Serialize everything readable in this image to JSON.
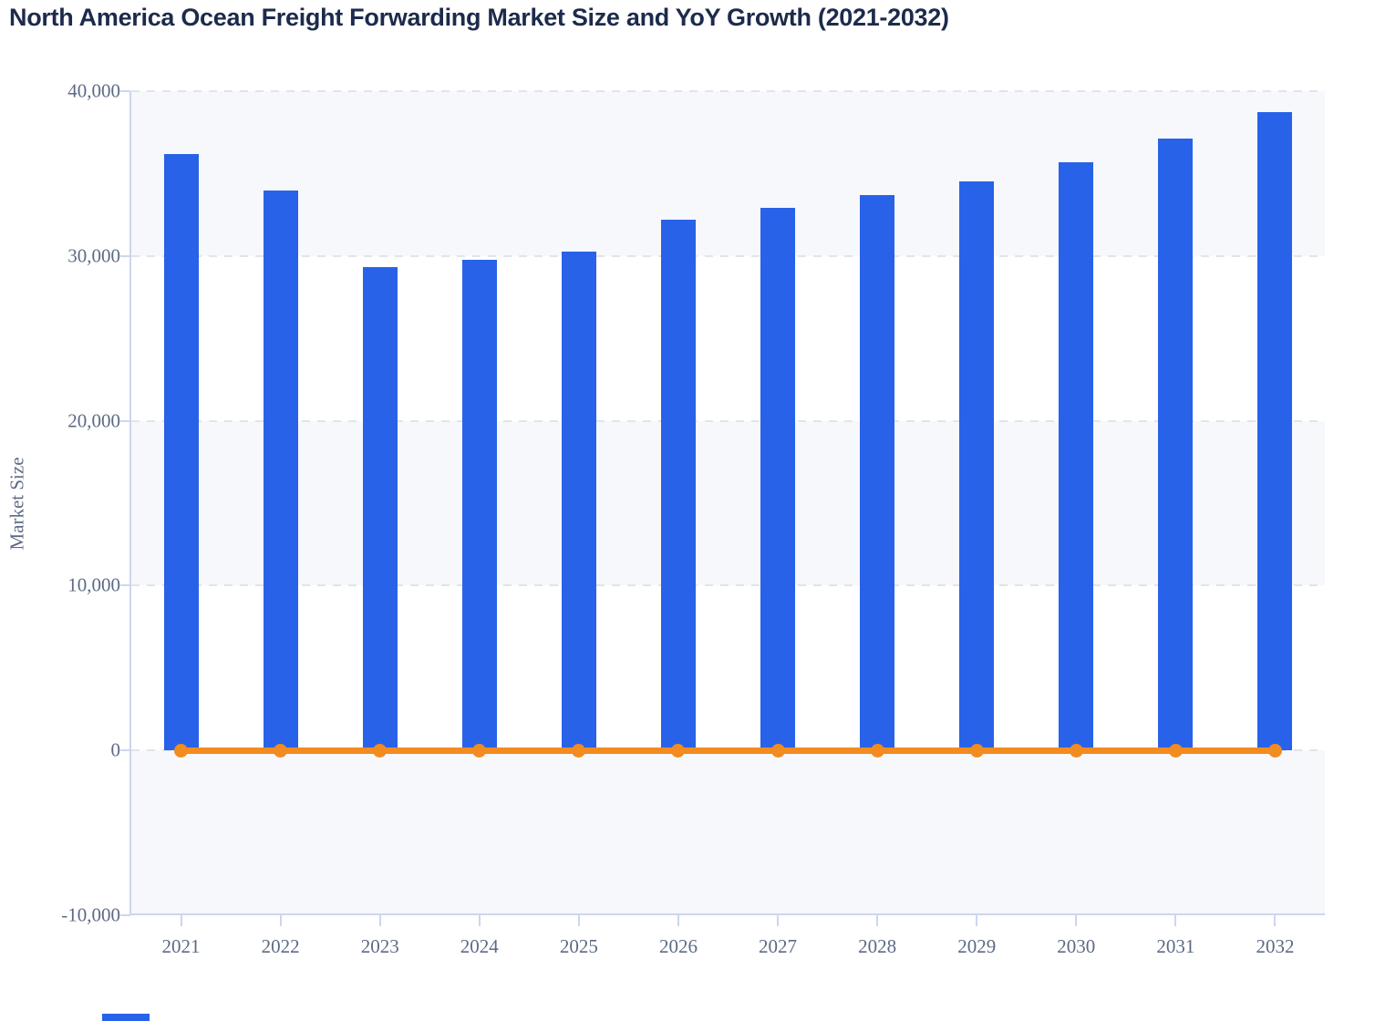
{
  "header": {
    "title": "North America Ocean Freight Forwarding Market Size and YoY Growth (2021-2032)"
  },
  "chart_data": {
    "type": "bar",
    "combo_types": [
      "bar",
      "line"
    ],
    "title": "North America Ocean Freight Forwarding Market Size and YoY Growth (2021-2032)",
    "categories": [
      "2021",
      "2022",
      "2023",
      "2024",
      "2025",
      "2026",
      "2027",
      "2028",
      "2029",
      "2030",
      "2031",
      "2032"
    ],
    "series": [
      {
        "name": "Market Size",
        "type": "bar",
        "color": "#2862e9",
        "values": [
          36200,
          33950,
          29300,
          29750,
          30250,
          32200,
          32900,
          33700,
          34550,
          35700,
          37100,
          38750
        ]
      },
      {
        "name": "YoY Growth",
        "type": "line",
        "color": "#f28b20",
        "marker": "circle",
        "values": [
          0,
          0,
          0,
          0,
          0,
          0,
          0,
          0,
          0,
          0,
          0,
          0
        ]
      }
    ],
    "xlabel": "",
    "ylabel": "Market Size",
    "ylim": [
      -10000,
      40000
    ],
    "yticks": [
      40000,
      30000,
      20000,
      10000,
      0,
      -10000
    ],
    "ytick_labels": [
      "40,000",
      "30,000",
      "20,000",
      "10,000",
      "0",
      "-10,000"
    ],
    "grid": "horizontal dashed gridlines",
    "split_area": "alternating light bands",
    "legend": "none"
  },
  "colors": {
    "bar_blue": "#2862e9",
    "line_orange": "#f28b20",
    "title_text": "#1d2b4b",
    "axis_text": "#5d6a85",
    "axis_line": "#ccd6ee",
    "gridline": "#e1e4ea",
    "band_fill": "#f7f8fb",
    "background": "#ffffff"
  }
}
